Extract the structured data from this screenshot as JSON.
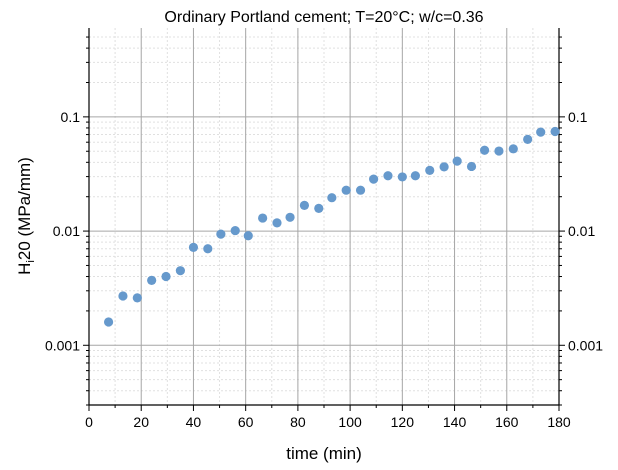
{
  "chart_data": {
    "type": "scatter",
    "title": "Ordinary Portland cement; T=20°C; w/c=0.36",
    "xlabel": "time (min)",
    "ylabel_main": "H",
    "ylabel_sub": "i",
    "ylabel_rest": "20 (MPa/mm)",
    "xlim": [
      0,
      180
    ],
    "ylim": [
      0.0003,
      0.6
    ],
    "yscale": "log",
    "grid": true,
    "marker_color": "#6699cc",
    "x_ticks": [
      0,
      20,
      40,
      60,
      80,
      100,
      120,
      140,
      160,
      180
    ],
    "x_tick_labels": [
      "0",
      "20",
      "40",
      "60",
      "80",
      "100",
      "120",
      "140",
      "160",
      "180"
    ],
    "y_ticks": [
      0.001,
      0.01,
      0.1
    ],
    "y_tick_labels": [
      "0.001",
      "0.01",
      "0.1"
    ],
    "series": [
      {
        "x": [
          7.5,
          13,
          18.5,
          24,
          29.5,
          35,
          40,
          45.5,
          50.5,
          56,
          61,
          66.5,
          72,
          77,
          82.5,
          88,
          93,
          98.5,
          104,
          109,
          114.5,
          120,
          125,
          130.5,
          136,
          141,
          146.5,
          151.5,
          157,
          162.5,
          168,
          173,
          178.5
        ],
        "y": [
          0.0016,
          0.0027,
          0.0026,
          0.0037,
          0.004,
          0.0045,
          0.0072,
          0.007,
          0.0094,
          0.0101,
          0.0091,
          0.013,
          0.0118,
          0.0132,
          0.0168,
          0.0158,
          0.0196,
          0.0228,
          0.0228,
          0.0285,
          0.0305,
          0.0298,
          0.0305,
          0.034,
          0.0365,
          0.041,
          0.0368,
          0.051,
          0.0502,
          0.0525,
          0.0635,
          0.0735,
          0.0745
        ]
      }
    ]
  }
}
